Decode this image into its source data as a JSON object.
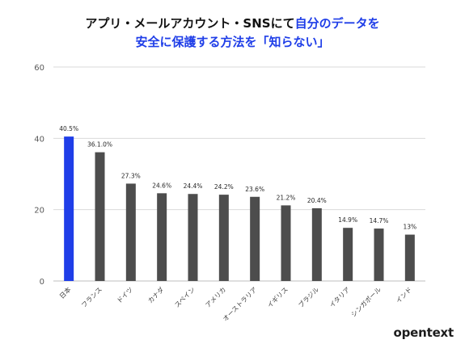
{
  "header": {
    "title_line1_normal": "アプリ・メールアカウント・SNSにて",
    "title_line1_highlight": "自分のデータを",
    "title_line2": "安全に保護する方法を「知らない」"
  },
  "colors": {
    "highlight_bar": "#1f3ee8",
    "default_bar": "#4d4d4d",
    "gridline": "#d9d9d9",
    "title_highlight": "#1f3ee8"
  },
  "chart_data": {
    "type": "bar",
    "categories": [
      "日本",
      "フランス",
      "ドイツ",
      "カナダ",
      "スペイン",
      "アメリカ",
      "オーストラリア",
      "イギリス",
      "ブラジル",
      "イタリア",
      "シンガポール",
      "インド"
    ],
    "values": [
      40.5,
      36.1,
      27.3,
      24.6,
      24.4,
      24.2,
      23.6,
      21.2,
      20.4,
      14.9,
      14.7,
      13
    ],
    "data_labels": [
      "40.5%",
      "36.1.0%",
      "27.3%",
      "24.6%",
      "24.4%",
      "24.2%",
      "23.6%",
      "21.2%",
      "20.4%",
      "14.9%",
      "14.7%",
      "13%"
    ],
    "highlight_index": 0,
    "ylim": [
      0,
      60
    ],
    "yticks": [
      "0",
      "20",
      "40",
      "60"
    ],
    "grid": true,
    "legend": "none"
  },
  "brand": {
    "logo_text": "opentext"
  }
}
